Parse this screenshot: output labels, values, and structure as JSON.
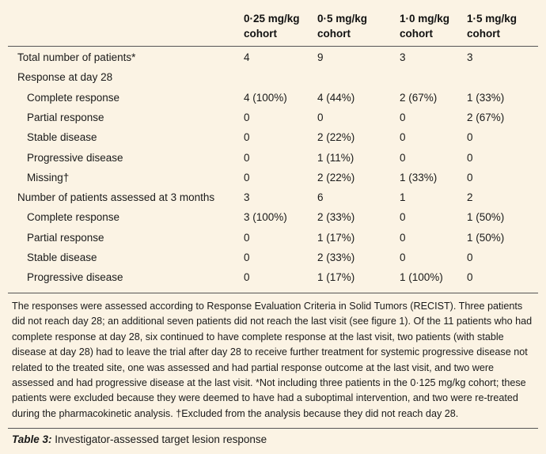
{
  "columns": [
    {
      "line1": "0·25 mg/kg",
      "line2": "cohort"
    },
    {
      "line1": "0·5 mg/kg",
      "line2": "cohort"
    },
    {
      "line1": "1·0 mg/kg",
      "line2": "cohort"
    },
    {
      "line1": "1·5 mg/kg",
      "line2": "cohort"
    }
  ],
  "rows": [
    {
      "label": "Total number of patients*",
      "indent": false,
      "cells": [
        "4",
        "9",
        "3",
        "3"
      ]
    },
    {
      "label": "Response at day 28",
      "indent": false,
      "cells": [
        "",
        "",
        "",
        ""
      ]
    },
    {
      "label": "Complete response",
      "indent": true,
      "cells": [
        "4 (100%)",
        "4 (44%)",
        "2 (67%)",
        "1 (33%)"
      ]
    },
    {
      "label": "Partial response",
      "indent": true,
      "cells": [
        "0",
        "0",
        "0",
        "2 (67%)"
      ]
    },
    {
      "label": "Stable disease",
      "indent": true,
      "cells": [
        "0",
        "2 (22%)",
        "0",
        "0"
      ]
    },
    {
      "label": "Progressive disease",
      "indent": true,
      "cells": [
        "0",
        "1 (11%)",
        "0",
        "0"
      ]
    },
    {
      "label": "Missing†",
      "indent": true,
      "cells": [
        "0",
        "2 (22%)",
        "1 (33%)",
        "0"
      ]
    },
    {
      "label": "Number of patients assessed at 3 months",
      "indent": false,
      "cells": [
        "3",
        "6",
        "1",
        "2"
      ]
    },
    {
      "label": "Complete response",
      "indent": true,
      "cells": [
        "3 (100%)",
        "2 (33%)",
        "0",
        "1 (50%)"
      ]
    },
    {
      "label": "Partial response",
      "indent": true,
      "cells": [
        "0",
        "1 (17%)",
        "0",
        "1 (50%)"
      ]
    },
    {
      "label": "Stable disease",
      "indent": true,
      "cells": [
        "0",
        "2 (33%)",
        "0",
        "0"
      ]
    },
    {
      "label": "Progressive disease",
      "indent": true,
      "cells": [
        "0",
        "1 (17%)",
        "1 (100%)",
        "0"
      ]
    }
  ],
  "footnote": "The responses were assessed according to Response Evaluation Criteria in Solid Tumors (RECIST). Three patients did not reach day 28; an additional seven patients did not reach the last visit (see figure 1). Of the 11 patients who had complete response at day 28, six continued to have complete response at the last visit, two patients (with stable disease at day 28) had to leave the trial after day 28 to receive further treatment for systemic progressive disease not related to the treated site, one was assessed and had partial response outcome at the last visit, and two were assessed and had progressive disease at the last visit. *Not including three patients in the 0·125 mg/kg cohort; these patients were excluded because they were deemed to have had a suboptimal intervention, and two were re-treated during the pharmacokinetic analysis. †Excluded from the analysis because they did not reach day 28.",
  "caption": {
    "label": "Table 3:",
    "text": " Investigator-assessed target lesion response"
  }
}
